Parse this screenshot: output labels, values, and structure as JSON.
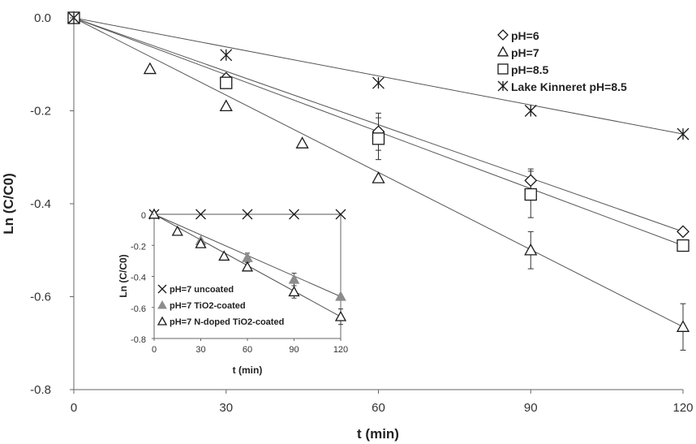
{
  "chart_data": [
    {
      "type": "scatter",
      "xlabel": "t (min)",
      "ylabel": "Ln (C/C0)",
      "xlim": [
        0,
        120
      ],
      "ylim": [
        -0.8,
        0
      ],
      "x_ticks": [
        "0",
        "30",
        "60",
        "90",
        "120"
      ],
      "y_ticks": [
        "0.0",
        "-0.2",
        "-0.4",
        "-0.6",
        "-0.8"
      ],
      "grid": false,
      "legend_position": "top-right",
      "series": [
        {
          "name": "pH=6",
          "marker": "diamond",
          "x": [
            0,
            30,
            60,
            90,
            120
          ],
          "y": [
            0,
            -0.13,
            -0.245,
            -0.35,
            -0.46
          ],
          "err": [
            0,
            0,
            0.04,
            0.025,
            0
          ],
          "fit": [
            0,
            -0.46
          ]
        },
        {
          "name": "pH=7",
          "marker": "triangle",
          "x": [
            0,
            15,
            30,
            45,
            60,
            90,
            120
          ],
          "y": [
            0,
            -0.11,
            -0.19,
            -0.27,
            -0.345,
            -0.5,
            -0.665
          ],
          "err": [
            0,
            0,
            0,
            0,
            0,
            0.04,
            0.05
          ],
          "fit": [
            0,
            -0.665
          ]
        },
        {
          "name": "pH=8.5",
          "marker": "square",
          "x": [
            0,
            30,
            60,
            90,
            120
          ],
          "y": [
            0,
            -0.14,
            -0.26,
            -0.38,
            -0.49
          ],
          "err": [
            0,
            0,
            0.045,
            0.05,
            0
          ],
          "fit": [
            0,
            -0.49
          ]
        },
        {
          "name": "Lake Kinneret pH=8.5",
          "marker": "asterisk",
          "x": [
            0,
            30,
            60,
            90,
            120
          ],
          "y": [
            0,
            -0.08,
            -0.14,
            -0.2,
            -0.25
          ],
          "err": [
            0,
            0,
            0,
            0,
            0
          ],
          "fit": [
            0,
            -0.25
          ]
        }
      ]
    },
    {
      "type": "scatter",
      "inset": true,
      "xlabel": "t (min)",
      "ylabel": "Ln (C/C0)",
      "xlim": [
        0,
        120
      ],
      "ylim": [
        -0.8,
        0
      ],
      "x_ticks": [
        "0",
        "30",
        "60",
        "90",
        "120"
      ],
      "y_ticks": [
        "0",
        "-0.2",
        "-0.4",
        "-0.6",
        "-0.8"
      ],
      "legend_position": "bottom-left",
      "series": [
        {
          "name": "pH=7 uncoated",
          "marker": "x",
          "x": [
            0,
            30,
            60,
            90,
            120
          ],
          "y": [
            0,
            0,
            0,
            0,
            0
          ],
          "err": [
            0,
            0,
            0,
            0,
            0
          ],
          "fit": [
            0,
            0
          ]
        },
        {
          "name": "pH=7 TiO2-coated",
          "marker": "filled-triangle",
          "x": [
            0,
            30,
            60,
            90,
            120
          ],
          "y": [
            0,
            -0.17,
            -0.28,
            -0.42,
            -0.53
          ],
          "err": [
            0,
            0,
            0.03,
            0.04,
            0
          ],
          "fit": [
            0,
            -0.53
          ]
        },
        {
          "name": "pH=7 N-doped TiO2-coated",
          "marker": "triangle",
          "x": [
            0,
            15,
            30,
            45,
            60,
            90,
            120
          ],
          "y": [
            0,
            -0.11,
            -0.19,
            -0.27,
            -0.34,
            -0.5,
            -0.66
          ],
          "err": [
            0,
            0,
            0,
            0,
            0,
            0.04,
            0.05
          ],
          "fit": [
            0,
            -0.66
          ]
        }
      ]
    }
  ],
  "colors": {
    "marker": "#1a1a1a",
    "fit_line": "#555555",
    "filled_marker": "#8c8c8c"
  }
}
